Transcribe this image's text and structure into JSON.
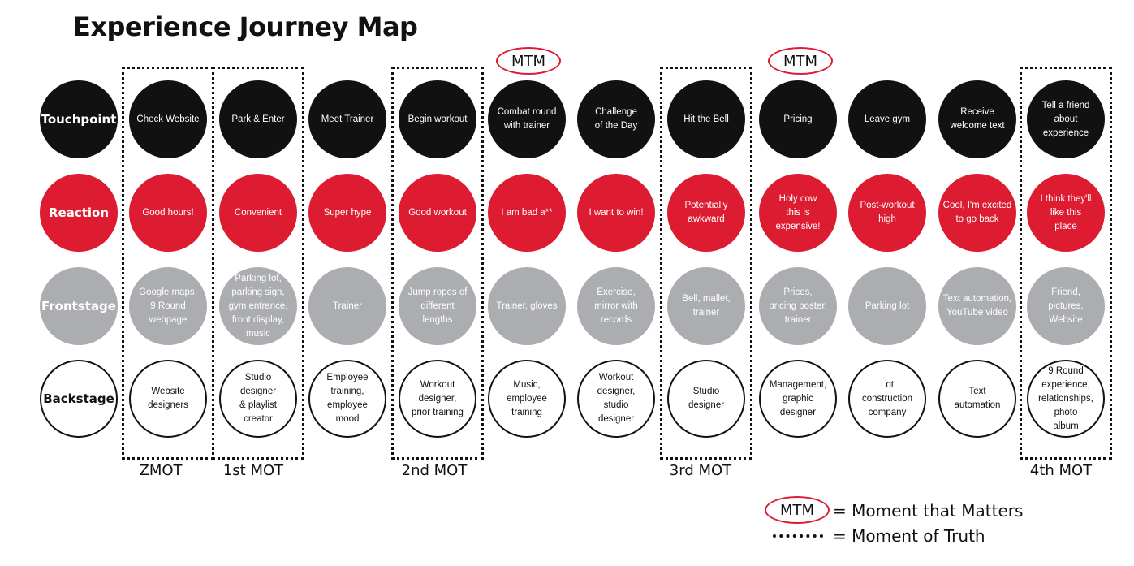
{
  "title": "Experience Journey Map",
  "colors": {
    "touchpoint": "#111111",
    "reaction": "#dd1c32",
    "frontstage": "#abadb0",
    "backstage": "#ffffff",
    "mtm_outline": "#dd1c32"
  },
  "row_headers": [
    "Touchpoint",
    "Reaction",
    "Frontstage",
    "Backstage"
  ],
  "columns": [
    {
      "touchpoint": "Check Website",
      "reaction": "Good hours!",
      "frontstage": "Google maps,\n9 Round\nwebpage",
      "backstage": "Website\ndesigners"
    },
    {
      "touchpoint": "Park & Enter",
      "reaction": "Convenient",
      "frontstage": "Parking lot,\nparking sign,\ngym entrance,\nfront display,\nmusic",
      "backstage": "Studio\ndesigner\n& playlist\ncreator"
    },
    {
      "touchpoint": "Meet Trainer",
      "reaction": "Super hype",
      "frontstage": "Trainer",
      "backstage": "Employee\ntraining,\nemployee\nmood"
    },
    {
      "touchpoint": "Begin workout",
      "reaction": "Good workout",
      "frontstage": "Jump ropes of\ndifferent\nlengths",
      "backstage": "Workout\ndesigner,\nprior training"
    },
    {
      "touchpoint": "Combat round\nwith trainer",
      "reaction": "I am bad a**",
      "frontstage": "Trainer, gloves",
      "backstage": "Music,\nemployee\ntraining"
    },
    {
      "touchpoint": "Challenge\nof the Day",
      "reaction": "I want to win!",
      "frontstage": "Exercise,\nmirror with\nrecords",
      "backstage": "Workout\ndesigner,\nstudio\ndesigner"
    },
    {
      "touchpoint": "Hit the Bell",
      "reaction": "Potentially\nawkward",
      "frontstage": "Bell, mallet,\ntrainer",
      "backstage": "Studio\ndesigner"
    },
    {
      "touchpoint": "Pricing",
      "reaction": "Holy cow\nthis is\nexpensive!",
      "frontstage": "Prices,\npricing poster,\ntrainer",
      "backstage": "Management,\ngraphic\ndesigner"
    },
    {
      "touchpoint": "Leave gym",
      "reaction": "Post-workout\nhigh",
      "frontstage": "Parking lot",
      "backstage": "Lot\nconstruction\ncompany"
    },
    {
      "touchpoint": "Receive\nwelcome text",
      "reaction": "Cool, I'm excited\nto go back",
      "frontstage": "Text automation,\nYouTube video",
      "backstage": "Text\nautomation"
    },
    {
      "touchpoint": "Tell a friend\nabout\nexperience",
      "reaction": "I think they'll\nlike this\nplace",
      "frontstage": "Friend,\npictures,\nWebsite",
      "backstage": "9 Round\nexperience,\nrelationships,\nphoto\nalbum"
    }
  ],
  "mot_labels": [
    "ZMOT",
    "1st MOT",
    "2nd MOT",
    "3rd MOT",
    "4th MOT"
  ],
  "mtm_label": "MTM",
  "legend": {
    "mtm": "MTM",
    "mtm_text": "= Moment that Matters",
    "mot_text": "= Moment of Truth"
  }
}
